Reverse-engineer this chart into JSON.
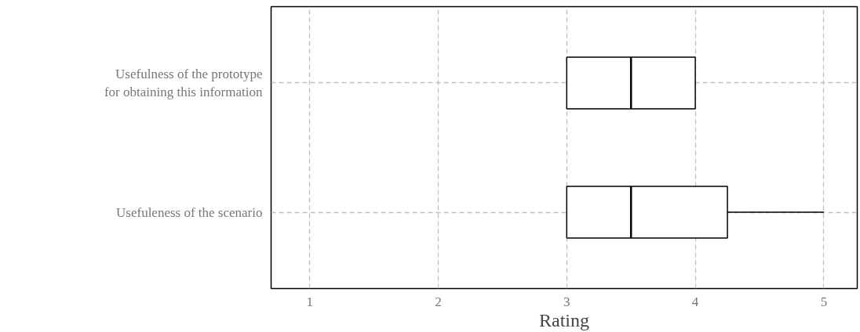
{
  "chart_data": {
    "type": "box",
    "orientation": "horizontal",
    "categories": [
      "Usefulness of the prototype\nfor obtaining this information",
      "Usefuleness of the scenario"
    ],
    "boxes": [
      {
        "low": 3,
        "q1": 3,
        "median": 3.5,
        "q3": 4,
        "high": 4
      },
      {
        "low": 3,
        "q1": 3,
        "median": 3.5,
        "q3": 4.25,
        "high": 5
      }
    ],
    "xlabel": "Rating",
    "xlim": [
      0.7,
      5.26
    ],
    "xticks": [
      1,
      2,
      3,
      4,
      5
    ],
    "grid": true
  }
}
